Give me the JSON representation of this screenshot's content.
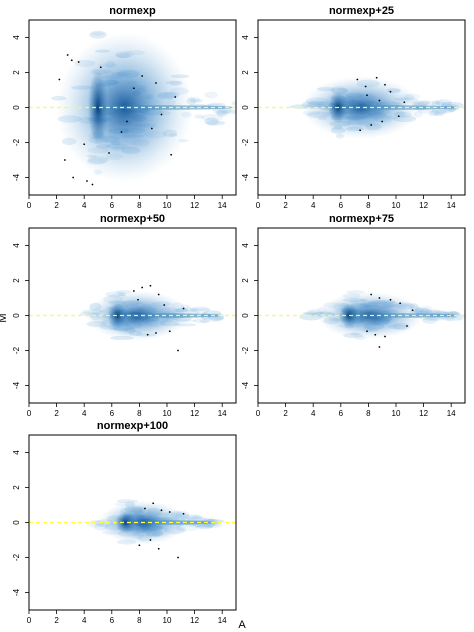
{
  "ylabel": "M",
  "xlabel": "A",
  "colors": {
    "density": "#1f6fb4",
    "reference_line": "#ffff33",
    "frame": "#000000"
  },
  "chart_data": [
    {
      "type": "scatter",
      "title": "normexp",
      "xlim": [
        0,
        15
      ],
      "ylim": [
        -5,
        5
      ],
      "xticks": [
        "0",
        "2",
        "4",
        "6",
        "8",
        "10",
        "12",
        "14"
      ],
      "yticks": [
        "4",
        "2",
        "0",
        "-2",
        "-4"
      ],
      "reference_line_y": 0,
      "density_center": [
        5,
        0
      ],
      "density_spread_x": [
        2.5,
        15
      ],
      "density_spread_y_at_center": 4.8,
      "points": [
        [
          2.2,
          1.6
        ],
        [
          2.8,
          3.0
        ],
        [
          3.1,
          2.7
        ],
        [
          3.6,
          2.6
        ],
        [
          5.2,
          2.3
        ],
        [
          4.0,
          -2.1
        ],
        [
          4.2,
          -4.2
        ],
        [
          3.2,
          -4.0
        ],
        [
          2.6,
          -3.0
        ],
        [
          4.6,
          -4.4
        ],
        [
          5.8,
          -2.6
        ],
        [
          6.7,
          -1.4
        ],
        [
          8.2,
          1.8
        ],
        [
          9.2,
          1.4
        ],
        [
          10.3,
          -2.7
        ],
        [
          10.6,
          0.6
        ],
        [
          9.6,
          -0.4
        ],
        [
          7.1,
          -0.8
        ],
        [
          8.9,
          -1.2
        ],
        [
          7.6,
          1.1
        ]
      ]
    },
    {
      "type": "scatter",
      "title": "normexp+25",
      "xlim": [
        0,
        15
      ],
      "ylim": [
        -5,
        5
      ],
      "xticks": [
        "0",
        "2",
        "4",
        "6",
        "8",
        "10",
        "12",
        "14"
      ],
      "yticks": [
        "4",
        "2",
        "0",
        "-2",
        "-4"
      ],
      "reference_line_y": 0,
      "density_center": [
        5.8,
        0
      ],
      "density_spread_x": [
        5.0,
        14.5
      ],
      "density_spread_y_at_center": 2.0,
      "points": [
        [
          7.2,
          1.6
        ],
        [
          7.8,
          1.2
        ],
        [
          8.6,
          1.7
        ],
        [
          9.2,
          1.3
        ],
        [
          9.6,
          0.9
        ],
        [
          7.4,
          -1.3
        ],
        [
          8.2,
          -1.0
        ],
        [
          9.0,
          -0.8
        ],
        [
          10.2,
          -0.5
        ],
        [
          7.9,
          0.7
        ],
        [
          8.8,
          0.4
        ],
        [
          10.6,
          0.3
        ]
      ]
    },
    {
      "type": "scatter",
      "title": "normexp+50",
      "xlim": [
        0,
        15
      ],
      "ylim": [
        -5,
        5
      ],
      "xticks": [
        "0",
        "2",
        "4",
        "6",
        "8",
        "10",
        "12",
        "14"
      ],
      "yticks": [
        "4",
        "2",
        "0",
        "-2",
        "-4"
      ],
      "reference_line_y": 0,
      "density_center": [
        6.4,
        0
      ],
      "density_spread_x": [
        6.0,
        14.0
      ],
      "density_spread_y_at_center": 1.6,
      "points": [
        [
          7.6,
          1.4
        ],
        [
          8.2,
          1.6
        ],
        [
          8.8,
          1.7
        ],
        [
          9.4,
          1.2
        ],
        [
          7.9,
          0.9
        ],
        [
          8.6,
          -1.1
        ],
        [
          9.2,
          -1.0
        ],
        [
          10.2,
          -0.9
        ],
        [
          10.8,
          -2.0
        ],
        [
          9.8,
          0.6
        ],
        [
          11.2,
          0.4
        ]
      ]
    },
    {
      "type": "scatter",
      "title": "normexp+75",
      "xlim": [
        0,
        15
      ],
      "ylim": [
        -5,
        5
      ],
      "xticks": [
        "0",
        "2",
        "4",
        "6",
        "8",
        "10",
        "12",
        "14"
      ],
      "yticks": [
        "4",
        "2",
        "0",
        "-2",
        "-4"
      ],
      "reference_line_y": 0,
      "density_center": [
        6.6,
        0
      ],
      "density_spread_x": [
        6.3,
        14.5
      ],
      "density_spread_y_at_center": 1.5,
      "points": [
        [
          8.2,
          1.2
        ],
        [
          8.8,
          1.0
        ],
        [
          9.6,
          0.9
        ],
        [
          10.3,
          0.7
        ],
        [
          7.9,
          -0.9
        ],
        [
          8.5,
          -1.1
        ],
        [
          9.2,
          -1.2
        ],
        [
          8.8,
          -1.8
        ],
        [
          10.8,
          -0.6
        ],
        [
          13.8,
          0.0
        ],
        [
          11.2,
          0.3
        ]
      ]
    },
    {
      "type": "scatter",
      "title": "normexp+100",
      "xlim": [
        0,
        15
      ],
      "ylim": [
        -5,
        5
      ],
      "xticks": [
        "0",
        "2",
        "4",
        "6",
        "8",
        "10",
        "12",
        "14"
      ],
      "yticks": [
        "4",
        "2",
        "0",
        "-2",
        "-4"
      ],
      "reference_line_y": 0,
      "density_center": [
        7.0,
        0
      ],
      "density_spread_x": [
        6.5,
        13.5
      ],
      "density_spread_y_at_center": 1.4,
      "points": [
        [
          8.4,
          0.8
        ],
        [
          9.0,
          1.1
        ],
        [
          9.6,
          0.7
        ],
        [
          10.2,
          0.6
        ],
        [
          8.0,
          -1.3
        ],
        [
          8.8,
          -1.0
        ],
        [
          9.4,
          -1.5
        ],
        [
          10.8,
          -2.0
        ],
        [
          11.2,
          0.5
        ]
      ]
    }
  ]
}
